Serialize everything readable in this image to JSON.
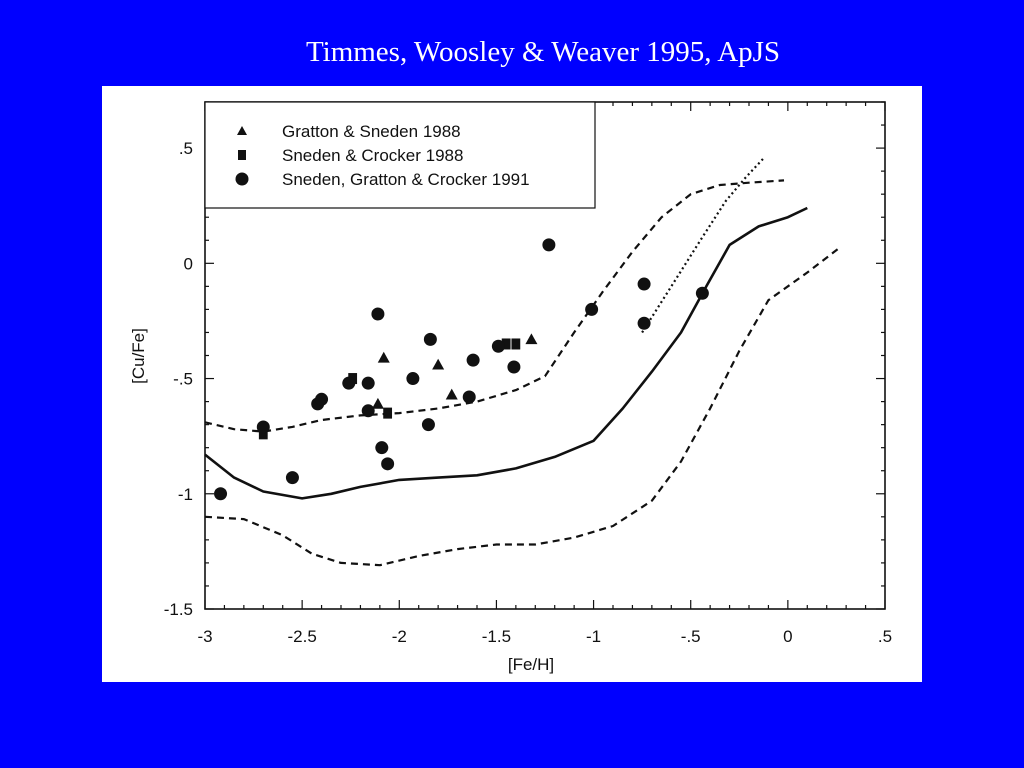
{
  "slide": {
    "title": "Timmes, Woosley & Weaver 1995, ApJS",
    "background": "#0000ff",
    "title_color": "#ffffff"
  },
  "chart_data": {
    "type": "scatter",
    "title": "",
    "xlabel": "[Fe/H]",
    "ylabel": "[Cu/Fe]",
    "xlim": [
      -3,
      0.5
    ],
    "ylim": [
      -1.5,
      0.7
    ],
    "x_ticks": [
      -3,
      -2.5,
      -2,
      -1.5,
      -1,
      -0.5,
      0,
      0.5
    ],
    "x_tick_labels": [
      "-3",
      "-2.5",
      "-2",
      "-1.5",
      "-1",
      "-.5",
      "0",
      ".5"
    ],
    "y_ticks": [
      0.5,
      0,
      -0.5,
      -1,
      -1.5
    ],
    "y_tick_labels": [
      ".5",
      "0",
      "-.5",
      "-1",
      "-1.5"
    ],
    "grid": false,
    "legend_position": "top-left",
    "series": [
      {
        "name": "Gratton & Sneden 1988",
        "marker": "triangle",
        "points": [
          [
            -2.08,
            -0.41
          ],
          [
            -1.8,
            -0.44
          ],
          [
            -1.73,
            -0.57
          ],
          [
            -1.32,
            -0.33
          ],
          [
            -2.11,
            -0.61
          ]
        ]
      },
      {
        "name": "Sneden & Crocker 1988",
        "marker": "square",
        "points": [
          [
            -2.7,
            -0.74
          ],
          [
            -2.24,
            -0.5
          ],
          [
            -2.06,
            -0.65
          ],
          [
            -1.45,
            -0.35
          ],
          [
            -1.4,
            -0.35
          ]
        ]
      },
      {
        "name": "Sneden, Gratton & Crocker 1991",
        "marker": "circle",
        "points": [
          [
            -2.92,
            -1.0
          ],
          [
            -2.7,
            -0.71
          ],
          [
            -2.55,
            -0.93
          ],
          [
            -2.42,
            -0.61
          ],
          [
            -2.4,
            -0.59
          ],
          [
            -2.26,
            -0.52
          ],
          [
            -2.16,
            -0.52
          ],
          [
            -2.16,
            -0.64
          ],
          [
            -2.11,
            -0.22
          ],
          [
            -2.09,
            -0.8
          ],
          [
            -2.06,
            -0.87
          ],
          [
            -1.93,
            -0.5
          ],
          [
            -1.85,
            -0.7
          ],
          [
            -1.84,
            -0.33
          ],
          [
            -1.64,
            -0.58
          ],
          [
            -1.62,
            -0.42
          ],
          [
            -1.49,
            -0.36
          ],
          [
            -1.41,
            -0.45
          ],
          [
            -1.23,
            0.08
          ],
          [
            -1.01,
            -0.2
          ],
          [
            -0.74,
            -0.09
          ],
          [
            -0.74,
            -0.26
          ],
          [
            -0.44,
            -0.13
          ]
        ]
      }
    ],
    "model_curves": [
      {
        "style": "solid",
        "points": [
          [
            -3.0,
            -0.83
          ],
          [
            -2.85,
            -0.93
          ],
          [
            -2.7,
            -0.99
          ],
          [
            -2.5,
            -1.02
          ],
          [
            -2.35,
            -1.0
          ],
          [
            -2.2,
            -0.97
          ],
          [
            -2.0,
            -0.94
          ],
          [
            -1.8,
            -0.93
          ],
          [
            -1.6,
            -0.92
          ],
          [
            -1.4,
            -0.89
          ],
          [
            -1.2,
            -0.84
          ],
          [
            -1.0,
            -0.77
          ],
          [
            -0.85,
            -0.63
          ],
          [
            -0.7,
            -0.47
          ],
          [
            -0.55,
            -0.3
          ],
          [
            -0.42,
            -0.1
          ],
          [
            -0.3,
            0.08
          ],
          [
            -0.15,
            0.16
          ],
          [
            0.0,
            0.2
          ],
          [
            0.1,
            0.24
          ]
        ]
      },
      {
        "style": "dashed",
        "points": [
          [
            -3.0,
            -0.69
          ],
          [
            -2.85,
            -0.72
          ],
          [
            -2.7,
            -0.73
          ],
          [
            -2.55,
            -0.71
          ],
          [
            -2.4,
            -0.68
          ],
          [
            -2.2,
            -0.66
          ],
          [
            -2.0,
            -0.65
          ],
          [
            -1.8,
            -0.63
          ],
          [
            -1.6,
            -0.6
          ],
          [
            -1.4,
            -0.55
          ],
          [
            -1.25,
            -0.49
          ],
          [
            -1.1,
            -0.3
          ],
          [
            -0.95,
            -0.12
          ],
          [
            -0.8,
            0.05
          ],
          [
            -0.65,
            0.2
          ],
          [
            -0.5,
            0.3
          ],
          [
            -0.35,
            0.34
          ],
          [
            -0.2,
            0.35
          ],
          [
            -0.02,
            0.36
          ]
        ]
      },
      {
        "style": "dashed",
        "points": [
          [
            -3.0,
            -1.1
          ],
          [
            -2.8,
            -1.11
          ],
          [
            -2.6,
            -1.18
          ],
          [
            -2.45,
            -1.26
          ],
          [
            -2.3,
            -1.3
          ],
          [
            -2.1,
            -1.31
          ],
          [
            -1.9,
            -1.27
          ],
          [
            -1.7,
            -1.24
          ],
          [
            -1.5,
            -1.22
          ],
          [
            -1.3,
            -1.22
          ],
          [
            -1.1,
            -1.19
          ],
          [
            -0.9,
            -1.14
          ],
          [
            -0.7,
            -1.03
          ],
          [
            -0.55,
            -0.86
          ],
          [
            -0.4,
            -0.63
          ],
          [
            -0.25,
            -0.38
          ],
          [
            -0.1,
            -0.16
          ],
          [
            0.1,
            -0.04
          ],
          [
            0.27,
            0.07
          ]
        ]
      },
      {
        "style": "dotted",
        "points": [
          [
            -0.75,
            -0.3
          ],
          [
            -0.6,
            -0.1
          ],
          [
            -0.45,
            0.1
          ],
          [
            -0.32,
            0.27
          ],
          [
            -0.22,
            0.37
          ],
          [
            -0.12,
            0.46
          ]
        ]
      }
    ]
  }
}
